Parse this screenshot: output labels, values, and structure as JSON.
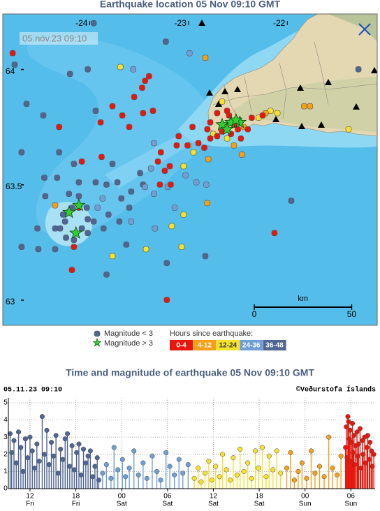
{
  "map": {
    "title": "Earthquake location   05 Nov 09:10 GMT",
    "timestamp": "05.nóv.23  09:10",
    "xlim": [
      -24.88,
      -21.09
    ],
    "ylim": [
      62.9,
      64.25
    ],
    "xticks": [
      -24,
      -23,
      -22
    ],
    "yticks": [
      64,
      63.5,
      63
    ],
    "scale": {
      "unit": "km",
      "ticks": [
        0,
        50
      ]
    },
    "legend": {
      "small": "Magnitude < 3",
      "large": "Magnitude > 3",
      "hours_title": "Hours since earthquake:",
      "bins": [
        {
          "label": "0-4",
          "color": "#e8170d",
          "text_color": "#ffffff"
        },
        {
          "label": "4-12",
          "color": "#f5a01a",
          "text_color": "#ffffff"
        },
        {
          "label": "12-24",
          "color": "#f7e12a",
          "text_color": "#333333"
        },
        {
          "label": "24-36",
          "color": "#6f9fd6",
          "text_color": "#ffffff"
        },
        {
          "label": "36-48",
          "color": "#4f6593",
          "text_color": "#ffffff"
        }
      ]
    },
    "large_color": "#33cc33",
    "quakes": [
      {
        "lon": -24.78,
        "lat": 64.08,
        "age": 0
      },
      {
        "lon": -23.47,
        "lat": 63.93,
        "age": 0
      },
      {
        "lon": -23.44,
        "lat": 63.96,
        "age": 0
      },
      {
        "lon": -23.4,
        "lat": 63.98,
        "age": 0
      },
      {
        "lon": -23.55,
        "lat": 63.89,
        "age": 0
      },
      {
        "lon": -23.77,
        "lat": 63.85,
        "age": 0
      },
      {
        "lon": -23.67,
        "lat": 63.81,
        "age": 0
      },
      {
        "lon": -23.46,
        "lat": 63.82,
        "age": 0
      },
      {
        "lon": -23.36,
        "lat": 63.83,
        "age": 0
      },
      {
        "lon": -23.6,
        "lat": 63.76,
        "age": 0
      },
      {
        "lon": -24.31,
        "lat": 63.76,
        "age": 0
      },
      {
        "lon": -23.89,
        "lat": 63.78,
        "age": 0
      },
      {
        "lon": -22.96,
        "lat": 63.76,
        "age": 0
      },
      {
        "lon": -23.1,
        "lat": 63.72,
        "age": 0
      },
      {
        "lon": -23.01,
        "lat": 63.68,
        "age": 0
      },
      {
        "lon": -22.9,
        "lat": 63.69,
        "age": 0
      },
      {
        "lon": -22.84,
        "lat": 63.67,
        "age": 0
      },
      {
        "lon": -22.78,
        "lat": 63.71,
        "age": 0
      },
      {
        "lon": -23.28,
        "lat": 63.65,
        "age": 0
      },
      {
        "lon": -23.31,
        "lat": 63.61,
        "age": 0
      },
      {
        "lon": -23.19,
        "lat": 63.59,
        "age": 0
      },
      {
        "lon": -23.24,
        "lat": 63.57,
        "age": 0
      },
      {
        "lon": -23.29,
        "lat": 63.51,
        "age": 0
      },
      {
        "lon": -23.18,
        "lat": 63.51,
        "age": 0
      },
      {
        "lon": -23.12,
        "lat": 63.68,
        "age": 0
      },
      {
        "lon": -23.88,
        "lat": 63.63,
        "age": 0
      },
      {
        "lon": -24.08,
        "lat": 63.61,
        "age": 0
      },
      {
        "lon": -23.22,
        "lat": 63.01,
        "age": 0
      },
      {
        "lon": -24.18,
        "lat": 63.14,
        "age": 0
      },
      {
        "lon": -24.16,
        "lat": 63.24,
        "age": 0
      },
      {
        "lon": -22.13,
        "lat": 63.3,
        "age": 0
      },
      {
        "lon": -24.11,
        "lat": 63.41,
        "age": 0
      },
      {
        "lon": -22.78,
        "lat": 63.78,
        "age": 0
      },
      {
        "lon": -22.71,
        "lat": 63.82,
        "age": 0
      },
      {
        "lon": -22.47,
        "lat": 63.71,
        "age": 0
      },
      {
        "lon": -22.4,
        "lat": 63.75,
        "age": 0
      },
      {
        "lon": -22.5,
        "lat": 63.75,
        "age": 0
      },
      {
        "lon": -22.57,
        "lat": 63.73,
        "age": 0
      },
      {
        "lon": -22.66,
        "lat": 63.74,
        "age": 0
      },
      {
        "lon": -22.36,
        "lat": 63.8,
        "age": 0
      },
      {
        "lon": -22.25,
        "lat": 63.81,
        "age": 0
      },
      {
        "lon": -22.61,
        "lat": 63.83,
        "age": 0
      },
      {
        "lon": -22.57,
        "lat": 63.78,
        "age": 0
      },
      {
        "lon": -22.54,
        "lat": 63.77,
        "age": 0
      },
      {
        "lon": -22.59,
        "lat": 63.81,
        "age": 0
      },
      {
        "lon": -22.81,
        "lat": 63.75,
        "age": 0
      },
      {
        "lon": -22.71,
        "lat": 63.72,
        "age": 0
      },
      {
        "lon": -22.83,
        "lat": 64.06,
        "age": 1
      },
      {
        "lon": -22.8,
        "lat": 63.62,
        "age": 1
      },
      {
        "lon": -22.46,
        "lat": 63.64,
        "age": 1
      },
      {
        "lon": -24.35,
        "lat": 63.42,
        "age": 1
      },
      {
        "lon": -22.81,
        "lat": 63.43,
        "age": 1
      },
      {
        "lon": -22.54,
        "lat": 63.68,
        "age": 1
      },
      {
        "lon": -22.22,
        "lat": 63.82,
        "age": 1
      },
      {
        "lon": -21.83,
        "lat": 63.85,
        "age": 1
      },
      {
        "lon": -21.77,
        "lat": 63.85,
        "age": 1
      },
      {
        "lon": -22.44,
        "lat": 63.76,
        "age": 1
      },
      {
        "lon": -23.69,
        "lat": 64.02,
        "age": 2
      },
      {
        "lon": -22.17,
        "lat": 63.83,
        "age": 2
      },
      {
        "lon": -22.1,
        "lat": 63.82,
        "age": 2
      },
      {
        "lon": -23.0,
        "lat": 63.68,
        "age": 2
      },
      {
        "lon": -23.05,
        "lat": 63.59,
        "age": 2
      },
      {
        "lon": -22.95,
        "lat": 63.65,
        "age": 2
      },
      {
        "lon": -23.05,
        "lat": 63.38,
        "age": 2
      },
      {
        "lon": -23.17,
        "lat": 63.33,
        "age": 2
      },
      {
        "lon": -23.43,
        "lat": 63.23,
        "age": 2
      },
      {
        "lon": -23.07,
        "lat": 63.24,
        "age": 2
      },
      {
        "lon": -23.77,
        "lat": 63.2,
        "age": 2
      },
      {
        "lon": -21.38,
        "lat": 63.75,
        "age": 2
      },
      {
        "lon": -22.67,
        "lat": 63.75,
        "age": 2
      },
      {
        "lon": -22.75,
        "lat": 63.73,
        "age": 2
      },
      {
        "lon": -22.29,
        "lat": 63.8,
        "age": 2
      },
      {
        "lon": -22.61,
        "lat": 63.71,
        "age": 2
      },
      {
        "lon": -22.66,
        "lat": 63.87,
        "age": 2
      },
      {
        "lon": -22.99,
        "lat": 64.08,
        "age": 3
      },
      {
        "lon": -23.56,
        "lat": 64.01,
        "age": 3
      },
      {
        "lon": -23.21,
        "lat": 63.5,
        "age": 3
      },
      {
        "lon": -23.44,
        "lat": 63.5,
        "age": 3
      },
      {
        "lon": -23.14,
        "lat": 63.41,
        "age": 3
      },
      {
        "lon": -23.58,
        "lat": 63.35,
        "age": 3
      },
      {
        "lon": -23.34,
        "lat": 63.32,
        "age": 3
      },
      {
        "lon": -23.03,
        "lat": 63.55,
        "age": 3
      },
      {
        "lon": -22.82,
        "lat": 63.51,
        "age": 3
      },
      {
        "lon": -22.92,
        "lat": 63.52,
        "age": 3
      },
      {
        "lon": -23.35,
        "lat": 63.47,
        "age": 3
      },
      {
        "lon": -23.87,
        "lat": 63.45,
        "age": 3
      },
      {
        "lon": -23.92,
        "lat": 63.41,
        "age": 3
      },
      {
        "lon": -23.38,
        "lat": 63.58,
        "age": 3
      },
      {
        "lon": -23.35,
        "lat": 63.69,
        "age": 3
      },
      {
        "lon": -23.96,
        "lat": 64.21,
        "age": 4
      },
      {
        "lon": -23.23,
        "lat": 64.13,
        "age": 4
      },
      {
        "lon": -24.76,
        "lat": 64.03,
        "age": 4
      },
      {
        "lon": -24.2,
        "lat": 63.99,
        "age": 4
      },
      {
        "lon": -24.64,
        "lat": 63.86,
        "age": 4
      },
      {
        "lon": -24.47,
        "lat": 63.81,
        "age": 4
      },
      {
        "lon": -24.69,
        "lat": 63.65,
        "age": 4
      },
      {
        "lon": -24.02,
        "lat": 64.01,
        "age": 4
      },
      {
        "lon": -23.94,
        "lat": 63.83,
        "age": 4
      },
      {
        "lon": -24.16,
        "lat": 63.6,
        "age": 4
      },
      {
        "lon": -24.31,
        "lat": 63.65,
        "age": 4
      },
      {
        "lon": -24.33,
        "lat": 63.54,
        "age": 4
      },
      {
        "lon": -24.21,
        "lat": 63.47,
        "age": 4
      },
      {
        "lon": -24.11,
        "lat": 63.52,
        "age": 4
      },
      {
        "lon": -23.94,
        "lat": 63.52,
        "age": 4
      },
      {
        "lon": -23.83,
        "lat": 63.51,
        "age": 4
      },
      {
        "lon": -23.72,
        "lat": 63.52,
        "age": 4
      },
      {
        "lon": -23.68,
        "lat": 63.45,
        "age": 4
      },
      {
        "lon": -23.49,
        "lat": 63.56,
        "age": 4
      },
      {
        "lon": -23.46,
        "lat": 63.51,
        "age": 4
      },
      {
        "lon": -24.11,
        "lat": 63.46,
        "age": 4
      },
      {
        "lon": -23.81,
        "lat": 63.38,
        "age": 4
      },
      {
        "lon": -23.7,
        "lat": 63.35,
        "age": 4
      },
      {
        "lon": -23.6,
        "lat": 63.41,
        "age": 4
      },
      {
        "lon": -23.86,
        "lat": 63.32,
        "age": 4
      },
      {
        "lon": -23.96,
        "lat": 63.35,
        "age": 4
      },
      {
        "lon": -24.02,
        "lat": 63.36,
        "age": 4
      },
      {
        "lon": -24.08,
        "lat": 63.32,
        "age": 4
      },
      {
        "lon": -24.22,
        "lat": 63.39,
        "age": 4
      },
      {
        "lon": -24.25,
        "lat": 63.35,
        "age": 4
      },
      {
        "lon": -24.3,
        "lat": 63.32,
        "age": 4
      },
      {
        "lon": -24.24,
        "lat": 63.28,
        "age": 4
      },
      {
        "lon": -24.35,
        "lat": 63.32,
        "age": 4
      },
      {
        "lon": -24.16,
        "lat": 63.27,
        "age": 4
      },
      {
        "lon": -24.69,
        "lat": 63.24,
        "age": 4
      },
      {
        "lon": -24.52,
        "lat": 63.23,
        "age": 4
      },
      {
        "lon": -24.35,
        "lat": 63.23,
        "age": 4
      },
      {
        "lon": -23.63,
        "lat": 63.25,
        "age": 4
      },
      {
        "lon": -23.22,
        "lat": 63.17,
        "age": 4
      },
      {
        "lon": -22.83,
        "lat": 63.2,
        "age": 4
      },
      {
        "lon": -23.83,
        "lat": 63.12,
        "age": 4
      },
      {
        "lon": -21.96,
        "lat": 63.44,
        "age": 4
      },
      {
        "lon": -21.28,
        "lat": 64.01,
        "age": 4
      },
      {
        "lon": -24.46,
        "lat": 63.54,
        "age": 4
      },
      {
        "lon": -24.45,
        "lat": 63.46,
        "age": 4
      },
      {
        "lon": -24.18,
        "lat": 63.41,
        "age": 4
      },
      {
        "lon": -24.27,
        "lat": 63.38,
        "age": 4
      },
      {
        "lon": -24.03,
        "lat": 63.41,
        "age": 4
      },
      {
        "lon": -23.58,
        "lat": 63.48,
        "age": 4
      },
      {
        "lon": -24.53,
        "lat": 63.32,
        "age": 4
      },
      {
        "lon": -24.02,
        "lat": 63.3,
        "age": 4
      },
      {
        "lon": -23.77,
        "lat": 63.6,
        "age": 4
      }
    ],
    "large_quakes": [
      {
        "lon": -24.11,
        "lat": 63.42
      },
      {
        "lon": -24.21,
        "lat": 63.39
      },
      {
        "lon": -24.14,
        "lat": 63.3
      },
      {
        "lon": -22.66,
        "lat": 63.77
      },
      {
        "lon": -22.57,
        "lat": 63.78
      },
      {
        "lon": -22.48,
        "lat": 63.78
      },
      {
        "lon": -22.61,
        "lat": 63.75
      },
      {
        "lon": -22.52,
        "lat": 63.79
      }
    ]
  },
  "chart_data": {
    "type": "stem",
    "title": "Time and magnitude of earthquake   05 Nov 09:10 GMT",
    "timestamp": "05.11.23 09:10",
    "credit": "©Veðurstofa Íslands",
    "xlim": [
      9.17,
      57.17
    ],
    "xticks": [
      12,
      18,
      {
        "value": 24,
        "label": "00"
      },
      {
        "value": 30,
        "label": "06"
      },
      {
        "value": 36,
        "label": "12"
      },
      {
        "value": 42,
        "label": "18"
      },
      {
        "value": 48,
        "label": "00"
      },
      {
        "value": 54,
        "label": "06"
      }
    ],
    "x_days": [
      "Fri",
      "Fri",
      "Sat",
      "Sat",
      "Sat",
      "Sat",
      "Sun",
      "Sun"
    ],
    "ylim": [
      0,
      5
    ],
    "yticks": [
      0,
      1,
      2,
      3,
      4,
      5
    ],
    "grid": true,
    "series": [
      {
        "age": 4,
        "x": [
          9.4,
          9.6,
          9.9,
          10.2,
          10.5,
          10.8,
          11.1,
          11.4,
          11.7,
          12.0,
          12.3,
          12.6,
          12.9,
          13.2,
          13.6,
          13.9,
          14.2,
          14.5,
          14.8,
          15.1,
          15.4,
          15.7,
          16.0,
          16.3,
          16.6,
          16.9,
          17.2,
          17.5,
          17.8,
          18.1,
          18.4,
          18.7,
          19.0,
          19.3,
          19.6,
          19.9,
          20.2,
          20.5,
          20.8,
          21.0
        ],
        "values": [
          3.2,
          2.1,
          2.8,
          1.5,
          3.3,
          2.4,
          1.0,
          2.9,
          1.8,
          3.0,
          2.2,
          1.2,
          2.6,
          1.6,
          4.2,
          2.0,
          3.4,
          1.4,
          2.7,
          1.9,
          3.1,
          0.9,
          2.3,
          1.7,
          2.9,
          3.2,
          1.3,
          2.5,
          1.1,
          2.1,
          2.6,
          0.8,
          2.3,
          1.5,
          1.9,
          2.2,
          0.7,
          1.3,
          1.8,
          0.5
        ]
      },
      {
        "age": 3,
        "x": [
          21.5,
          22.0,
          22.6,
          23.0,
          23.5,
          24.1,
          24.5,
          25.0,
          25.6,
          26.2,
          26.8,
          27.3,
          28.0,
          28.6,
          29.1,
          29.8,
          30.3,
          30.9,
          31.5,
          32.0,
          32.7
        ],
        "values": [
          0.9,
          1.4,
          0.6,
          2.4,
          1.1,
          1.7,
          0.7,
          1.2,
          2.2,
          0.8,
          1.5,
          0.6,
          1.9,
          1.0,
          0.5,
          2.1,
          1.3,
          0.8,
          1.7,
          0.9,
          1.4
        ]
      },
      {
        "age": 2,
        "x": [
          33.5,
          34.0,
          34.4,
          34.9,
          35.4,
          35.8,
          36.3,
          36.8,
          37.2,
          37.7,
          38.2,
          38.6,
          39.1,
          39.5,
          40.0,
          40.5,
          41.0,
          41.5,
          41.9,
          42.4,
          42.9,
          43.3,
          43.8,
          44.3,
          44.8
        ],
        "values": [
          0.6,
          1.2,
          0.4,
          0.9,
          1.6,
          0.5,
          1.3,
          0.7,
          2.0,
          1.1,
          0.5,
          1.8,
          0.8,
          2.3,
          1.0,
          1.5,
          0.6,
          2.2,
          1.2,
          2.4,
          0.7,
          1.9,
          1.1,
          2.2,
          0.9
        ]
      },
      {
        "age": 1,
        "x": [
          45.6,
          46.1,
          46.6,
          47.1,
          47.6,
          48.2,
          48.8,
          49.3,
          49.9,
          50.5,
          51.1,
          51.6,
          52.2,
          52.7
        ],
        "values": [
          1.2,
          2.1,
          0.5,
          1.0,
          1.5,
          0.6,
          2.2,
          0.9,
          1.3,
          0.7,
          3.0,
          1.2,
          0.8,
          1.9
        ]
      },
      {
        "age": 0,
        "x": [
          53.3,
          53.4,
          53.5,
          53.6,
          53.7,
          53.8,
          53.9,
          54.0,
          54.1,
          54.2,
          54.3,
          54.4,
          54.5,
          54.6,
          54.8,
          54.9,
          55.0,
          55.2,
          55.3,
          55.5,
          55.6,
          55.8,
          55.9,
          56.1,
          56.2,
          56.4,
          56.5,
          56.7,
          56.8,
          57.0
        ],
        "values": [
          2.4,
          3.6,
          1.8,
          4.2,
          3.9,
          2.9,
          3.4,
          1.6,
          2.7,
          3.8,
          2.1,
          3.1,
          1.4,
          2.5,
          3.3,
          1.9,
          2.6,
          3.5,
          1.2,
          2.8,
          2.0,
          3.0,
          1.5,
          2.4,
          3.1,
          1.7,
          2.7,
          2.2,
          1.3,
          2.0
        ]
      }
    ]
  }
}
